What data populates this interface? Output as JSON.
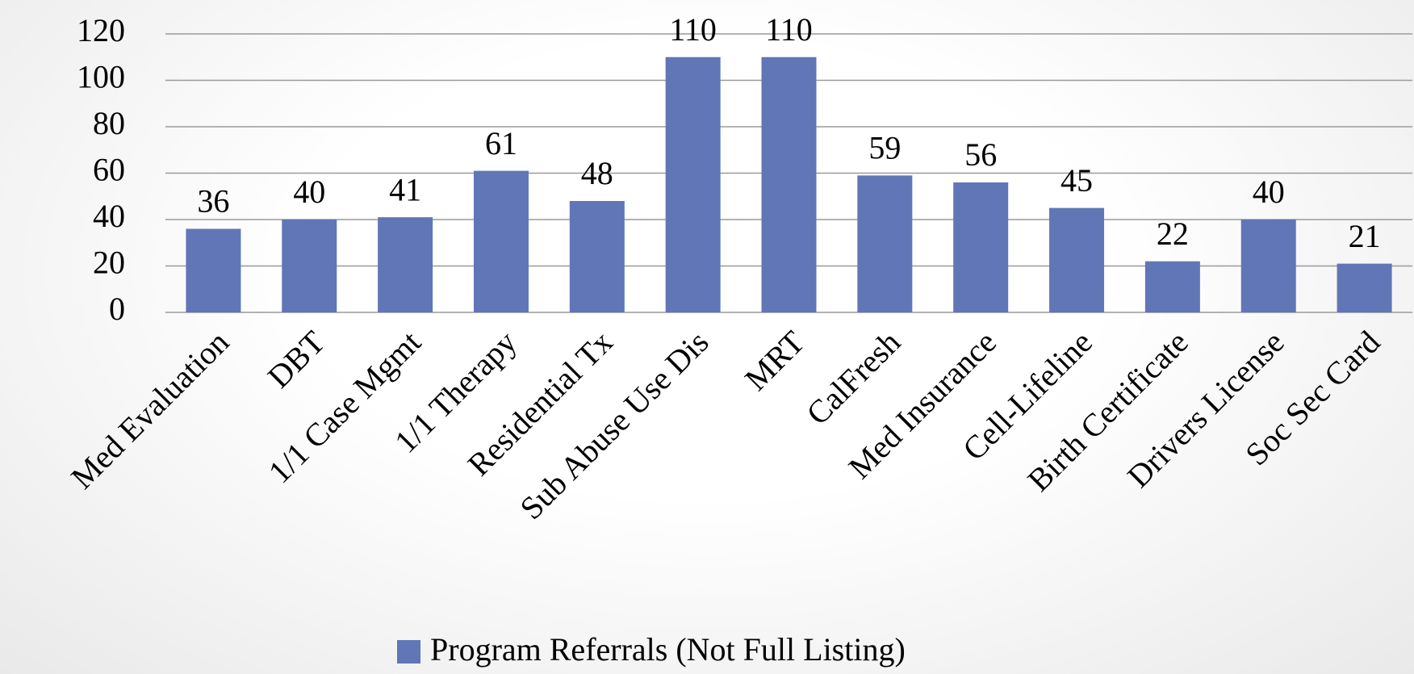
{
  "chart_data": {
    "type": "bar",
    "categories": [
      "Med Evaluation",
      "DBT",
      "1/1 Case Mgmt",
      "1/1 Therapy",
      "Residential Tx",
      "Sub Abuse Use Dis",
      "MRT",
      "CalFresh",
      "Med Insurance",
      "Cell-Lifeline",
      "Birth Certificate",
      "Drivers License",
      "Soc Sec Card"
    ],
    "series": [
      {
        "name": "Program Referrals (Not Full Listing)",
        "color": "#6076b6",
        "values": [
          36,
          40,
          41,
          61,
          48,
          110,
          110,
          59,
          56,
          45,
          22,
          40,
          21
        ]
      }
    ],
    "ylim": [
      0,
      120
    ],
    "yticks": [
      0,
      20,
      40,
      60,
      80,
      100,
      120
    ],
    "grid": true,
    "legend": "bottom"
  }
}
